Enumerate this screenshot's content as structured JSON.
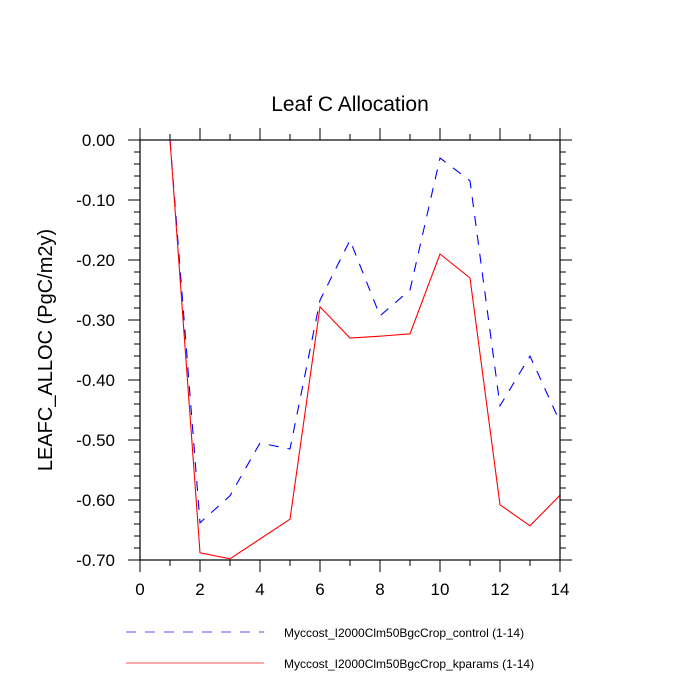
{
  "chart_data": {
    "type": "line",
    "title": "Leaf C Allocation",
    "xlabel": "",
    "ylabel": "LEAFC_ALLOC  (PgC/m2y)",
    "xlim": [
      0,
      14
    ],
    "ylim": [
      -0.7,
      0.0
    ],
    "xticks": [
      0,
      2,
      4,
      6,
      8,
      10,
      12,
      14
    ],
    "xtick_labels": [
      "0",
      "2",
      "4",
      "6",
      "8",
      "10",
      "12",
      "14"
    ],
    "yticks": [
      0.0,
      -0.1,
      -0.2,
      -0.3,
      -0.4,
      -0.5,
      -0.6,
      -0.7
    ],
    "ytick_labels": [
      "0.00",
      "-0.10",
      "-0.20",
      "-0.30",
      "-0.40",
      "-0.50",
      "-0.60",
      "-0.70"
    ],
    "grid": false,
    "legend_position": "bottom",
    "x": [
      1,
      2,
      3,
      4,
      5,
      6,
      7,
      8,
      9,
      10,
      11,
      12,
      13,
      14
    ],
    "series": [
      {
        "name": "Myccost_I2000Clm50BgcCrop_control (1-14)",
        "color": "#0000ff",
        "style": "dashed",
        "values": [
          0.0,
          -0.638,
          -0.593,
          -0.505,
          -0.515,
          -0.267,
          -0.167,
          -0.293,
          -0.25,
          -0.03,
          -0.068,
          -0.443,
          -0.36,
          -0.47
        ]
      },
      {
        "name": "Myccost_I2000Clm50BgcCrop_kparams (1-14)",
        "color": "#ff0000",
        "style": "solid",
        "values": [
          0.0,
          -0.688,
          -0.698,
          -0.665,
          -0.632,
          -0.278,
          -0.33,
          -0.327,
          -0.323,
          -0.19,
          -0.23,
          -0.608,
          -0.643,
          -0.592
        ]
      }
    ]
  }
}
